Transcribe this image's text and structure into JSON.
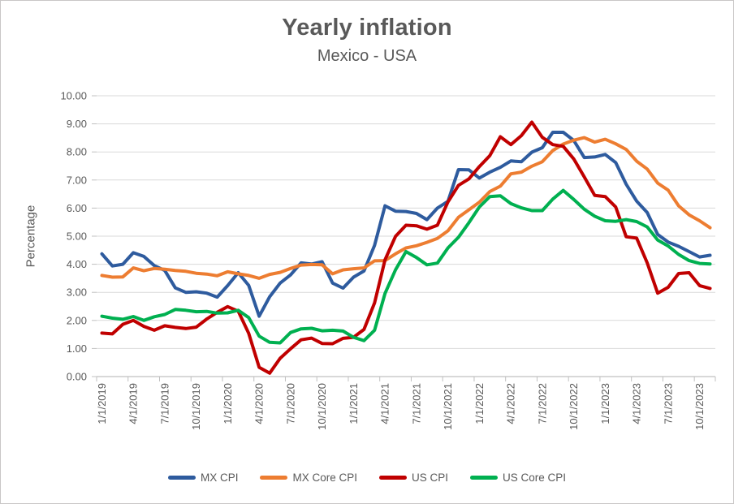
{
  "chart": {
    "title": "Yearly inflation",
    "subtitle": "Mexico - USA",
    "ylabel": "Percentage"
  },
  "colors": {
    "text": "#595959",
    "grid": "#d9d9d9",
    "axis": "#c0c0c0",
    "background": "#ffffff",
    "border": "#c9c7c7"
  },
  "chart_data": {
    "type": "line",
    "title": "Yearly inflation",
    "subtitle": "Mexico - USA",
    "xlabel": "",
    "ylabel": "Percentage",
    "ylim": [
      0,
      10
    ],
    "grid": "horizontal",
    "legend_position": "bottom",
    "y_tick_labels": [
      "0.00",
      "1.00",
      "2.00",
      "3.00",
      "4.00",
      "5.00",
      "6.00",
      "7.00",
      "8.00",
      "9.00",
      "10.00"
    ],
    "x_tick_interval": 3,
    "x_tick_labels": [
      "1/1/2019",
      "4/1/2019",
      "7/1/2019",
      "10/1/2019",
      "1/1/2020",
      "4/1/2020",
      "7/1/2020",
      "10/1/2020",
      "1/1/2021",
      "4/1/2021",
      "7/1/2021",
      "10/1/2021",
      "1/1/2022",
      "4/1/2022",
      "7/1/2022",
      "10/1/2022",
      "1/1/2023",
      "4/1/2023",
      "7/1/2023",
      "10/1/2023"
    ],
    "x": [
      "1/1/2019",
      "2/1/2019",
      "3/1/2019",
      "4/1/2019",
      "5/1/2019",
      "6/1/2019",
      "7/1/2019",
      "8/1/2019",
      "9/1/2019",
      "10/1/2019",
      "11/1/2019",
      "12/1/2019",
      "1/1/2020",
      "2/1/2020",
      "3/1/2020",
      "4/1/2020",
      "5/1/2020",
      "6/1/2020",
      "7/1/2020",
      "8/1/2020",
      "9/1/2020",
      "10/1/2020",
      "11/1/2020",
      "12/1/2020",
      "1/1/2021",
      "2/1/2021",
      "3/1/2021",
      "4/1/2021",
      "5/1/2021",
      "6/1/2021",
      "7/1/2021",
      "8/1/2021",
      "9/1/2021",
      "10/1/2021",
      "11/1/2021",
      "12/1/2021",
      "1/1/2022",
      "2/1/2022",
      "3/1/2022",
      "4/1/2022",
      "5/1/2022",
      "6/1/2022",
      "7/1/2022",
      "8/1/2022",
      "9/1/2022",
      "10/1/2022",
      "11/1/2022",
      "12/1/2022",
      "1/1/2023",
      "2/1/2023",
      "3/1/2023",
      "4/1/2023",
      "5/1/2023",
      "6/1/2023",
      "7/1/2023",
      "8/1/2023",
      "9/1/2023",
      "10/1/2023",
      "11/1/2023"
    ],
    "series": [
      {
        "name": "MX CPI",
        "color": "#2e5b9e",
        "values": [
          4.37,
          3.94,
          4.0,
          4.41,
          4.28,
          3.95,
          3.78,
          3.16,
          3.0,
          3.02,
          2.97,
          2.83,
          3.24,
          3.7,
          3.25,
          2.15,
          2.84,
          3.33,
          3.62,
          4.05,
          4.01,
          4.09,
          3.33,
          3.15,
          3.54,
          3.76,
          4.67,
          6.08,
          5.89,
          5.88,
          5.81,
          5.59,
          6.0,
          6.24,
          7.37,
          7.36,
          7.07,
          7.28,
          7.45,
          7.68,
          7.65,
          7.99,
          8.15,
          8.7,
          8.7,
          8.41,
          7.8,
          7.82,
          7.91,
          7.62,
          6.85,
          6.25,
          5.84,
          5.06,
          4.79,
          4.64,
          4.45,
          4.26,
          4.32
        ]
      },
      {
        "name": "MX Core CPI",
        "color": "#ed7d31",
        "values": [
          3.6,
          3.54,
          3.55,
          3.87,
          3.77,
          3.85,
          3.82,
          3.78,
          3.75,
          3.68,
          3.65,
          3.59,
          3.73,
          3.66,
          3.6,
          3.5,
          3.64,
          3.71,
          3.85,
          3.97,
          3.99,
          3.98,
          3.66,
          3.8,
          3.84,
          3.87,
          4.12,
          4.13,
          4.37,
          4.58,
          4.66,
          4.78,
          4.92,
          5.19,
          5.67,
          5.94,
          6.21,
          6.59,
          6.78,
          7.22,
          7.28,
          7.49,
          7.65,
          8.05,
          8.28,
          8.42,
          8.51,
          8.35,
          8.45,
          8.29,
          8.09,
          7.67,
          7.39,
          6.89,
          6.64,
          6.08,
          5.76,
          5.55,
          5.3
        ]
      },
      {
        "name": "US CPI",
        "color": "#c00000",
        "values": [
          1.55,
          1.52,
          1.86,
          2.0,
          1.79,
          1.65,
          1.81,
          1.75,
          1.71,
          1.76,
          2.05,
          2.29,
          2.49,
          2.33,
          1.54,
          0.33,
          0.12,
          0.65,
          0.99,
          1.31,
          1.37,
          1.18,
          1.17,
          1.36,
          1.4,
          1.68,
          2.62,
          4.16,
          4.99,
          5.39,
          5.37,
          5.25,
          5.39,
          6.22,
          6.81,
          7.04,
          7.48,
          7.87,
          8.54,
          8.26,
          8.58,
          9.06,
          8.52,
          8.26,
          8.2,
          7.75,
          7.11,
          6.45,
          6.41,
          6.04,
          4.98,
          4.93,
          4.05,
          2.97,
          3.18,
          3.67,
          3.7,
          3.24,
          3.14
        ]
      },
      {
        "name": "US Core CPI",
        "color": "#00b050",
        "values": [
          2.15,
          2.08,
          2.04,
          2.14,
          2.0,
          2.13,
          2.21,
          2.39,
          2.36,
          2.31,
          2.32,
          2.26,
          2.27,
          2.36,
          2.1,
          1.44,
          1.22,
          1.2,
          1.57,
          1.7,
          1.72,
          1.63,
          1.65,
          1.62,
          1.4,
          1.28,
          1.65,
          2.96,
          3.8,
          4.45,
          4.24,
          3.98,
          4.04,
          4.58,
          4.96,
          5.48,
          6.04,
          6.41,
          6.44,
          6.16,
          6.01,
          5.91,
          5.91,
          6.32,
          6.63,
          6.31,
          5.96,
          5.71,
          5.55,
          5.53,
          5.59,
          5.52,
          5.33,
          4.86,
          4.65,
          4.35,
          4.13,
          4.03,
          4.01
        ]
      }
    ]
  }
}
